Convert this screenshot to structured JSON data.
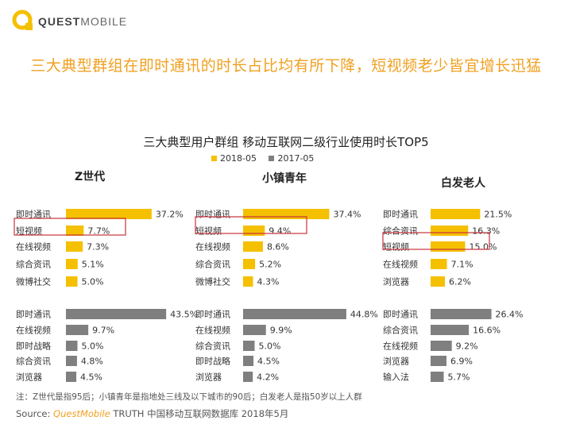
{
  "brand": {
    "logo_text_bold": "QUEST",
    "logo_text_light": "MOBILE"
  },
  "headline": "三大典型群组在即时通讯的时长占比均有所下降，短视频老少皆宜增长迅猛",
  "colors": {
    "series_2018": "#F5C000",
    "series_2017": "#7F7F7F",
    "highlight_box": "#C8323C",
    "accent": "#F0A020"
  },
  "chart_data": {
    "type": "bar",
    "title": "三大典型用户群组 移动互联网二级行业使用时长TOP5",
    "legend": [
      "2018-05",
      "2017-05"
    ],
    "legend_placement": "top-center",
    "groups": [
      {
        "name": "Z世代",
        "series_2018": {
          "categories": [
            "即时通讯",
            "短视频",
            "在线视频",
            "综合资讯",
            "微博社交"
          ],
          "values": [
            37.2,
            7.7,
            7.3,
            5.1,
            5.0
          ],
          "labels": [
            "37.2%",
            "7.7%",
            "7.3%",
            "5.1%",
            "5.0%"
          ],
          "highlighted": "短视频"
        },
        "series_2017": {
          "categories": [
            "即时通讯",
            "在线视频",
            "即时战略",
            "综合资讯",
            "浏览器"
          ],
          "values": [
            43.5,
            9.7,
            5.0,
            4.8,
            4.5
          ],
          "labels": [
            "43.5%",
            "9.7%",
            "5.0%",
            "4.8%",
            "4.5%"
          ]
        }
      },
      {
        "name": "小镇青年",
        "series_2018": {
          "categories": [
            "即时通讯",
            "短视频",
            "在线视频",
            "综合资讯",
            "微博社交"
          ],
          "values": [
            37.4,
            9.4,
            8.6,
            5.2,
            4.3
          ],
          "labels": [
            "37.4%",
            "9.4%",
            "8.6%",
            "5.2%",
            "4.3%"
          ],
          "highlighted": "短视频"
        },
        "series_2017": {
          "categories": [
            "即时通讯",
            "在线视频",
            "综合资讯",
            "即时战略",
            "浏览器"
          ],
          "values": [
            44.8,
            9.9,
            5.0,
            4.5,
            4.2
          ],
          "labels": [
            "44.8%",
            "9.9%",
            "5.0%",
            "4.5%",
            "4.2%"
          ]
        }
      },
      {
        "name": "白发老人",
        "series_2018": {
          "categories": [
            "即时通讯",
            "综合资讯",
            "短视频",
            "在线视频",
            "浏览器"
          ],
          "values": [
            21.5,
            16.3,
            15.0,
            7.1,
            6.2
          ],
          "labels": [
            "21.5%",
            "16.3%",
            "15.0%",
            "7.1%",
            "6.2%"
          ],
          "highlighted": "短视频"
        },
        "series_2017": {
          "categories": [
            "即时通讯",
            "综合资讯",
            "在线视频",
            "浏览器",
            "输入法"
          ],
          "values": [
            26.4,
            16.6,
            9.2,
            6.9,
            5.7
          ],
          "labels": [
            "26.4%",
            "16.6%",
            "9.2%",
            "6.9%",
            "5.7%"
          ]
        }
      }
    ]
  },
  "note": "注：Z世代是指95后；小镇青年是指地处三线及以下城市的90后；白发老人是指50岁以上人群",
  "source": {
    "prefix": "Source:  ",
    "brand": "QuestMobile",
    "rest": " TRUTH 中国移动互联网数据库 2018年5月"
  }
}
